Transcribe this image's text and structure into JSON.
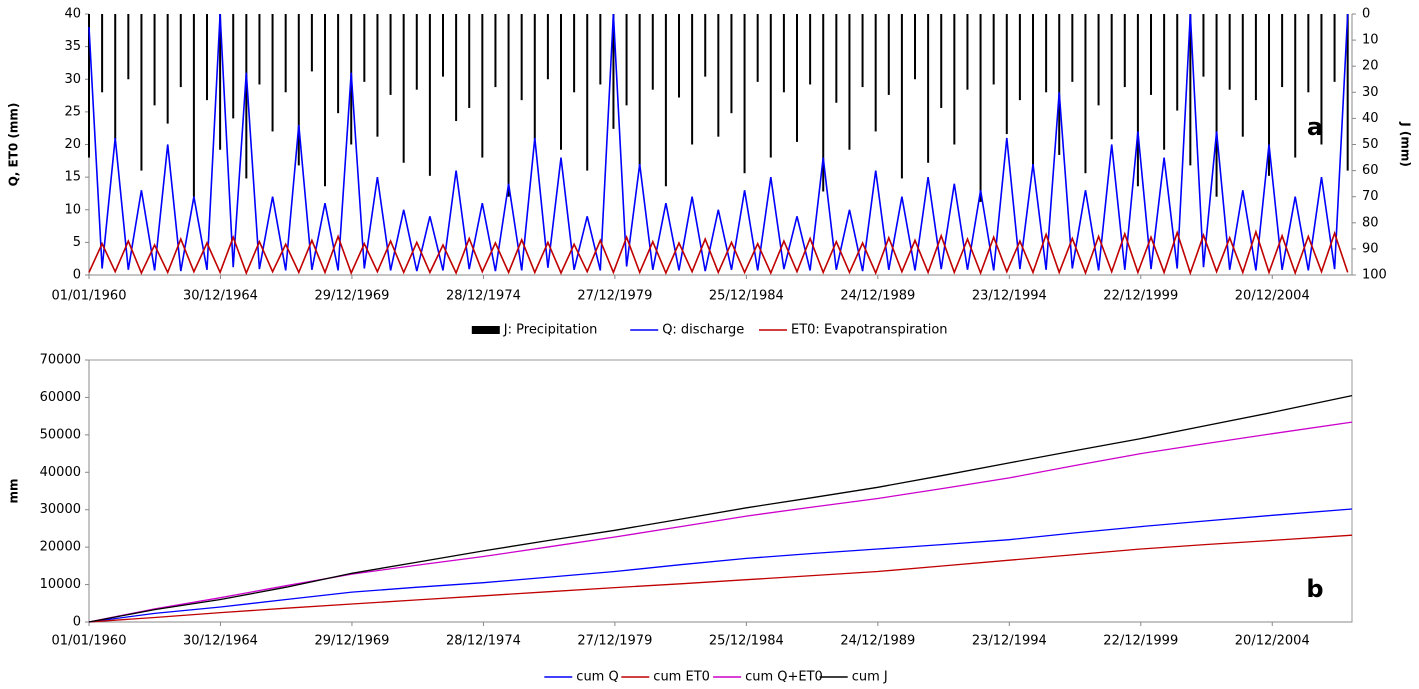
{
  "chart_data": [
    {
      "type": "line",
      "annotation": "a",
      "y_label": "Q, ET0 (mm)",
      "y2_label": "J (mm)",
      "legend": "bottom",
      "x": [
        0,
        182,
        364,
        546,
        728,
        910,
        1092,
        1274,
        1456,
        1638,
        1820,
        2002,
        2184,
        2366,
        2548,
        2730,
        2912,
        3094,
        3276,
        3458,
        3640,
        3822,
        4004,
        4186,
        4368,
        4550,
        4732,
        4914,
        5096,
        5278,
        5460,
        5642,
        5824,
        6006,
        6188,
        6370,
        6552,
        6734,
        6916,
        7098,
        7280,
        7462,
        7644,
        7826,
        8008,
        8190,
        8372,
        8554,
        8736,
        8918,
        9100,
        9282,
        9464,
        9646,
        9828,
        10010,
        10192,
        10374,
        10556,
        10738,
        10920,
        11102,
        11284,
        11466,
        11648,
        11830,
        12012,
        12194,
        12376,
        12558,
        12740,
        12922,
        13104,
        13286,
        13468,
        13650,
        13832,
        14014,
        14196,
        14378,
        14560,
        14742,
        14924,
        15106,
        15288,
        15470,
        15652,
        15834,
        16016,
        16198,
        16380,
        16562,
        16744,
        16926,
        17108,
        17290,
        17472
      ],
      "xlim": [
        0,
        17532
      ],
      "xticks": [
        {
          "value": 0,
          "label": "01/01/1960"
        },
        {
          "value": 1825,
          "label": "30/12/1964"
        },
        {
          "value": 3650,
          "label": "29/12/1969"
        },
        {
          "value": 5475,
          "label": "28/12/1974"
        },
        {
          "value": 7300,
          "label": "27/12/1979"
        },
        {
          "value": 9125,
          "label": "25/12/1984"
        },
        {
          "value": 10950,
          "label": "24/12/1989"
        },
        {
          "value": 12775,
          "label": "23/12/1994"
        },
        {
          "value": 14600,
          "label": "22/12/1999"
        },
        {
          "value": 16425,
          "label": "20/12/2004"
        }
      ],
      "ylim": [
        0,
        40
      ],
      "yticks": [
        0,
        5,
        10,
        15,
        20,
        25,
        30,
        35,
        40
      ],
      "y2lim": [
        0,
        100
      ],
      "y2_reversed": true,
      "y2ticks": [
        0,
        10,
        20,
        30,
        40,
        50,
        60,
        70,
        80,
        90,
        100
      ],
      "series": [
        {
          "name": "J: Precipitation",
          "type": "bar",
          "axis": "y2",
          "color": "#000000",
          "values": [
            55,
            30,
            48,
            25,
            60,
            35,
            42,
            28,
            70,
            33,
            52,
            40,
            63,
            27,
            45,
            30,
            58,
            22,
            66,
            38,
            50,
            26,
            47,
            31,
            57,
            29,
            62,
            24,
            41,
            36,
            55,
            28,
            70,
            33,
            48,
            25,
            52,
            30,
            60,
            27,
            44,
            35,
            58,
            29,
            66,
            32,
            50,
            24,
            47,
            38,
            61,
            26,
            55,
            30,
            49,
            27,
            68,
            34,
            52,
            28,
            45,
            31,
            63,
            25,
            57,
            36,
            50,
            29,
            72,
            27,
            46,
            33,
            59,
            30,
            54,
            26,
            61,
            35,
            48,
            28,
            66,
            31,
            52,
            37,
            58,
            24,
            70,
            29,
            47,
            33,
            62,
            28,
            55,
            30,
            50,
            26,
            60
          ]
        },
        {
          "name": "Q: discharge",
          "color": "#0000ff",
          "values": [
            38,
            1.0,
            21,
            0.8,
            13,
            0.7,
            20,
            0.6,
            12,
            0.8,
            40,
            1.2,
            31,
            0.9,
            12,
            0.7,
            23,
            0.8,
            11,
            0.7,
            31,
            1.0,
            15,
            0.7,
            10,
            0.6,
            9,
            0.7,
            16,
            0.9,
            11,
            0.6,
            14,
            0.7,
            21,
            1.1,
            18,
            0.8,
            9,
            0.7,
            40,
            1.3,
            17,
            0.8,
            11,
            0.7,
            12,
            0.6,
            10,
            0.8,
            13,
            0.7,
            15,
            0.9,
            9,
            0.7,
            18,
            0.8,
            10,
            0.6,
            16,
            0.8,
            12,
            0.7,
            15,
            0.9,
            14,
            0.8,
            13,
            0.7,
            21,
            0.9,
            17,
            0.8,
            28,
            1.0,
            13,
            0.7,
            20,
            0.8,
            22,
            0.9,
            18,
            1.0,
            40,
            1.2,
            22,
            0.8,
            13,
            0.7,
            20,
            0.8,
            12,
            0.7,
            15,
            0.9,
            40
          ]
        },
        {
          "name": "ET0: Evapotranspiration",
          "color": "#c00000",
          "values": [
            0.4,
            4.8,
            0.5,
            5.2,
            0.3,
            4.6,
            0.4,
            5.5,
            0.5,
            4.9,
            0.4,
            5.8,
            0.3,
            5.1,
            0.5,
            4.7,
            0.4,
            5.3,
            0.4,
            5.9,
            0.3,
            4.8,
            0.5,
            5.2,
            0.4,
            5.0,
            0.4,
            4.6,
            0.3,
            5.6,
            0.5,
            4.9,
            0.4,
            5.4,
            0.4,
            5.0,
            0.3,
            4.7,
            0.5,
            5.3,
            0.4,
            5.8,
            0.4,
            5.1,
            0.3,
            4.9,
            0.5,
            5.5,
            0.4,
            5.0,
            0.4,
            4.8,
            0.3,
            5.2,
            0.5,
            5.6,
            0.4,
            5.1,
            0.4,
            4.9,
            0.3,
            5.7,
            0.5,
            5.3,
            0.4,
            6.0,
            0.4,
            5.5,
            0.3,
            5.8,
            0.5,
            5.2,
            0.4,
            6.2,
            0.4,
            5.6,
            0.3,
            5.9,
            0.5,
            6.3,
            0.4,
            5.8,
            0.4,
            6.5,
            0.3,
            6.1,
            0.5,
            5.7,
            0.4,
            6.6,
            0.4,
            6.0,
            0.3,
            5.9,
            0.5,
            6.4,
            0.4
          ]
        }
      ]
    },
    {
      "type": "line",
      "annotation": "b",
      "y_label": "mm",
      "legend": "bottom",
      "x": [
        0,
        912,
        1825,
        2737,
        3650,
        4562,
        5475,
        6387,
        7300,
        8212,
        9125,
        10037,
        10950,
        11862,
        12775,
        13687,
        14600,
        15512,
        16425,
        17532
      ],
      "xlim": [
        0,
        17532
      ],
      "xticks": [
        {
          "value": 0,
          "label": "01/01/1960"
        },
        {
          "value": 1825,
          "label": "30/12/1964"
        },
        {
          "value": 3650,
          "label": "29/12/1969"
        },
        {
          "value": 5475,
          "label": "28/12/1974"
        },
        {
          "value": 7300,
          "label": "27/12/1979"
        },
        {
          "value": 9125,
          "label": "25/12/1984"
        },
        {
          "value": 10950,
          "label": "24/12/1989"
        },
        {
          "value": 12775,
          "label": "23/12/1994"
        },
        {
          "value": 14600,
          "label": "22/12/1999"
        },
        {
          "value": 16425,
          "label": "20/12/2004"
        }
      ],
      "ylim": [
        0,
        70000
      ],
      "yticks": [
        0,
        10000,
        20000,
        30000,
        40000,
        50000,
        60000,
        70000
      ],
      "series": [
        {
          "name": "cum Q",
          "color": "#0000ff",
          "values": [
            0,
            2300,
            4000,
            6000,
            8000,
            9300,
            10500,
            12000,
            13500,
            15300,
            17000,
            18300,
            19500,
            20700,
            22000,
            23800,
            25500,
            27000,
            28500,
            30200
          ]
        },
        {
          "name": "cum ET0",
          "color": "#c00000",
          "values": [
            0,
            1200,
            2500,
            3700,
            4800,
            5900,
            7000,
            8100,
            9200,
            10200,
            11300,
            12400,
            13500,
            15000,
            16500,
            18000,
            19500,
            20700,
            21800,
            23200
          ]
        },
        {
          "name": "cum Q+ET0",
          "color": "#cc00cc",
          "values": [
            0,
            3500,
            6500,
            9700,
            12800,
            15200,
            17500,
            20100,
            22700,
            25500,
            28300,
            30700,
            33000,
            35700,
            38500,
            41800,
            45000,
            47700,
            50300,
            53400
          ]
        },
        {
          "name": "cum J",
          "color": "#000000",
          "values": [
            0,
            3300,
            6000,
            9300,
            13000,
            16000,
            19000,
            21800,
            24500,
            27500,
            30500,
            33200,
            36000,
            39200,
            42500,
            45800,
            49000,
            52500,
            56000,
            60500
          ]
        }
      ]
    }
  ]
}
